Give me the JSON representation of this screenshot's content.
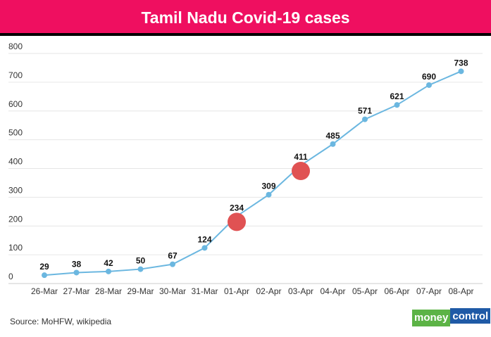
{
  "chart_data": {
    "type": "line",
    "title": "Tamil Nadu Covid-19 cases",
    "categories": [
      "26-Mar",
      "27-Mar",
      "28-Mar",
      "29-Mar",
      "30-Mar",
      "31-Mar",
      "01-Apr",
      "02-Apr",
      "03-Apr",
      "04-Apr",
      "05-Apr",
      "06-Apr",
      "07-Apr",
      "08-Apr"
    ],
    "values": [
      29,
      38,
      42,
      50,
      67,
      124,
      234,
      309,
      411,
      485,
      571,
      621,
      690,
      738
    ],
    "highlighted": [
      "01-Apr",
      "03-Apr"
    ],
    "ylim": [
      0,
      800
    ],
    "yticks": [
      0,
      100,
      200,
      300,
      400,
      500,
      600,
      700,
      800
    ],
    "grid": true,
    "colors": {
      "line": "#6bb7e0",
      "highlight": "#e05253",
      "header": "#ef0f60"
    }
  },
  "source": "Source: MoHFW, wikipedia",
  "logo": {
    "part1": "money",
    "part2": "control"
  }
}
